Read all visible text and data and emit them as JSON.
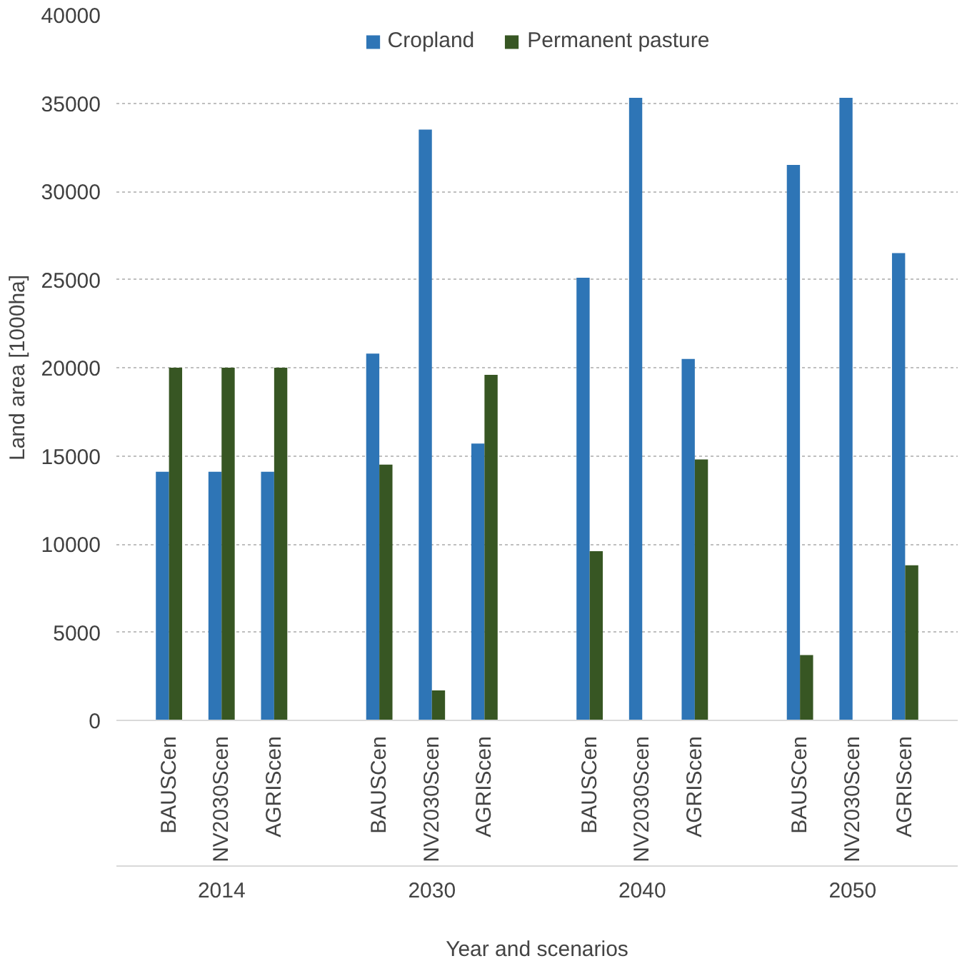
{
  "chart_data": {
    "type": "bar",
    "xlabel": "Year and scenarios",
    "ylabel": "Land area [1000ha]",
    "categories": [
      "BAUSCen",
      "NV2030Scen",
      "AGRIScen",
      null,
      "BAUSCen",
      "NV2030Scen",
      "AGRIScen",
      null,
      "BAUSCen",
      "NV2030Scen",
      "AGRIScen",
      null,
      "BAUSCen",
      "NV2030Scen",
      "AGRIScen"
    ],
    "series": [
      {
        "name": "Cropland",
        "color": "#2e75b6",
        "values": [
          14100,
          14100,
          14100,
          null,
          20800,
          33500,
          15700,
          null,
          25100,
          35300,
          20500,
          null,
          31500,
          35300,
          26500
        ]
      },
      {
        "name": "Permanent pasture",
        "color": "#375623",
        "values": [
          20000,
          20000,
          20000,
          null,
          14500,
          1700,
          19600,
          null,
          9600,
          0,
          14800,
          null,
          3700,
          0,
          8800
        ]
      }
    ],
    "annotations": [
      "2014",
      "2030",
      "2040",
      "2050"
    ],
    "ylim": [
      0,
      40000
    ],
    "yticks": [
      0,
      5000,
      10000,
      15000,
      20000,
      25000,
      30000,
      35000,
      40000
    ],
    "grid": "y",
    "legend": "top"
  }
}
